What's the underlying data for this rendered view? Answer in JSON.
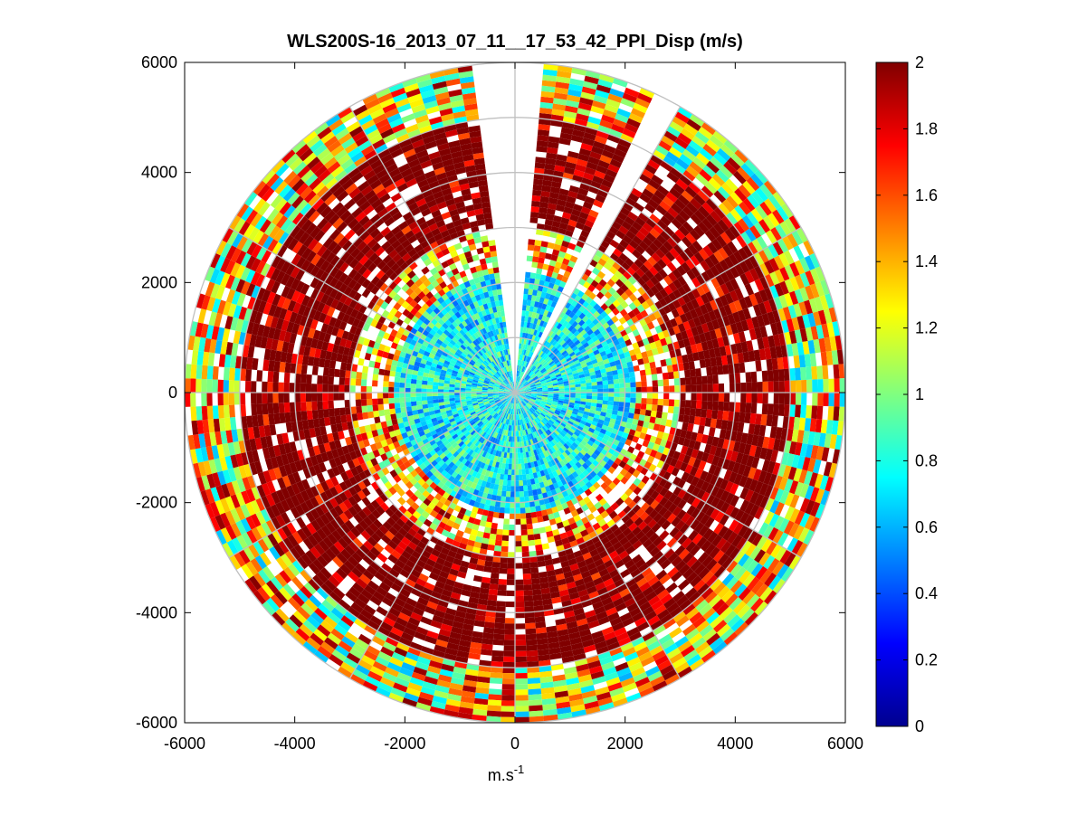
{
  "chart_data": {
    "type": "heatmap",
    "subtype": "polar-ppi",
    "title": "WLS200S-16_2013_07_11__17_53_42_PPI_Disp (m/s)",
    "xlabel_base": "m.s",
    "xlabel_exponent": "-1",
    "ylabel": "",
    "xlim": [
      -6000,
      6000
    ],
    "ylim": [
      -6000,
      6000
    ],
    "x_ticks": [
      -6000,
      -4000,
      -2000,
      0,
      2000,
      4000,
      6000
    ],
    "y_ticks": [
      -6000,
      -4000,
      -2000,
      0,
      2000,
      4000,
      6000
    ],
    "x_tick_labels": [
      "-6000",
      "-4000",
      "-2000",
      "0",
      "2000",
      "4000",
      "6000"
    ],
    "y_tick_labels": [
      "-6000",
      "-4000",
      "-2000",
      "0",
      "2000",
      "4000",
      "6000"
    ],
    "max_range": 6000,
    "range_rings": [
      1000,
      2000,
      3000,
      4000,
      5000,
      6000
    ],
    "spoke_angles_deg": [
      0,
      30,
      60,
      90,
      120,
      150,
      180,
      210,
      240,
      270,
      300,
      330
    ],
    "colorbar": {
      "min": 0,
      "max": 2,
      "ticks": [
        0,
        0.2,
        0.4,
        0.6,
        0.8,
        1,
        1.2,
        1.4,
        1.6,
        1.8,
        2
      ],
      "tick_labels": [
        "0",
        "0.2",
        "0.4",
        "0.6",
        "0.8",
        "1",
        "1.2",
        "1.4",
        "1.6",
        "1.8",
        "2"
      ],
      "colormap": "jet"
    },
    "zones": [
      {
        "name": "inner",
        "r_min": 0,
        "r_max": 2200,
        "value_low": 0.45,
        "value_high": 1.05
      },
      {
        "name": "transition",
        "r_min": 2200,
        "r_max": 3000,
        "value_low": 0.9,
        "value_high": 2.0
      },
      {
        "name": "middle",
        "r_min": 3000,
        "r_max": 5000,
        "value_low": 1.6,
        "value_high": 2.0
      },
      {
        "name": "outer",
        "r_min": 5000,
        "r_max": 6000,
        "value_low": 0.6,
        "value_high": 2.0
      }
    ],
    "blank_sectors_bearing_deg": [
      [
        353,
        360
      ],
      [
        0,
        5
      ],
      [
        26,
        31
      ]
    ],
    "missing_data": "white"
  }
}
